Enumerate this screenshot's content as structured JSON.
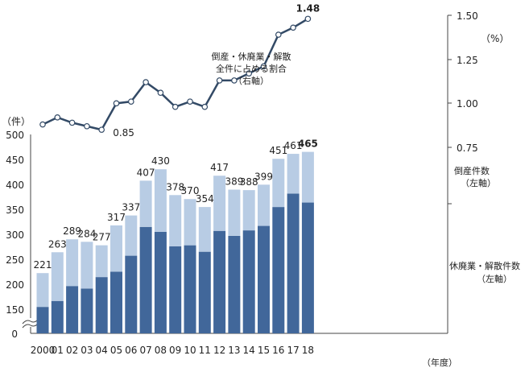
{
  "chart_data": {
    "type": "bar",
    "categories": [
      "2000",
      "01",
      "02",
      "03",
      "04",
      "05",
      "06",
      "07",
      "08",
      "09",
      "10",
      "11",
      "12",
      "13",
      "14",
      "15",
      "16",
      "17",
      "18"
    ],
    "series": [
      {
        "name": "休廃業・解散件数（左軸）",
        "type": "bar",
        "stack": "total",
        "values": [
          153,
          165,
          195,
          190,
          213,
          224,
          256,
          314,
          304,
          275,
          277,
          264,
          306,
          296,
          307,
          316,
          354,
          381,
          363
        ],
        "color": "#41679a"
      },
      {
        "name": "倒産件数（左軸）",
        "type": "bar",
        "stack": "total",
        "values": [
          68,
          98,
          94,
          94,
          64,
          93,
          81,
          93,
          126,
          103,
          93,
          90,
          111,
          93,
          81,
          83,
          97,
          80,
          102
        ],
        "color": "#b8cce4"
      },
      {
        "name": "倒産・休廃業・解散全件に占める割合（右軸）",
        "type": "line",
        "axis": "right",
        "values": [
          0.88,
          0.92,
          0.89,
          0.87,
          0.85,
          1.0,
          1.01,
          1.12,
          1.06,
          0.98,
          1.01,
          0.98,
          1.13,
          1.13,
          1.17,
          1.21,
          1.39,
          1.43,
          1.48
        ],
        "color": "#334a66"
      }
    ],
    "totals": [
      221,
      263,
      289,
      284,
      277,
      317,
      337,
      407,
      430,
      378,
      370,
      354,
      417,
      389,
      388,
      399,
      451,
      461,
      465
    ],
    "total_labels": [
      "221",
      "263",
      "289",
      "284",
      "277",
      "317",
      "337",
      "407",
      "430",
      "378",
      "370",
      "354",
      "417",
      "389",
      "388",
      "399",
      "451",
      "461",
      "465"
    ],
    "ratio_labels": {
      "min": "0.85",
      "max": "1.48"
    },
    "left_axis": {
      "unit": "（件）",
      "ticks": [
        "500",
        "450",
        "400",
        "350",
        "300",
        "250",
        "200",
        "150",
        "0"
      ],
      "ylim": [
        0,
        500
      ],
      "broken": true
    },
    "right_axis": {
      "unit": "（%）",
      "ticks": [
        "1.50",
        "1.25",
        "1.00",
        "0.75"
      ],
      "ylim": [
        0.75,
        1.5
      ]
    },
    "x_unit": "（年度）",
    "annotations": {
      "ratio_line1": "倒産・休廃業・解散",
      "ratio_line2": "全件に占める割合",
      "ratio_line3": "（右軸）",
      "bankruptcy_line1": "倒産件数",
      "bankruptcy_line2": "（左軸）",
      "closure_line1": "休廃業・解散件数",
      "closure_line2": "（左軸）"
    }
  }
}
